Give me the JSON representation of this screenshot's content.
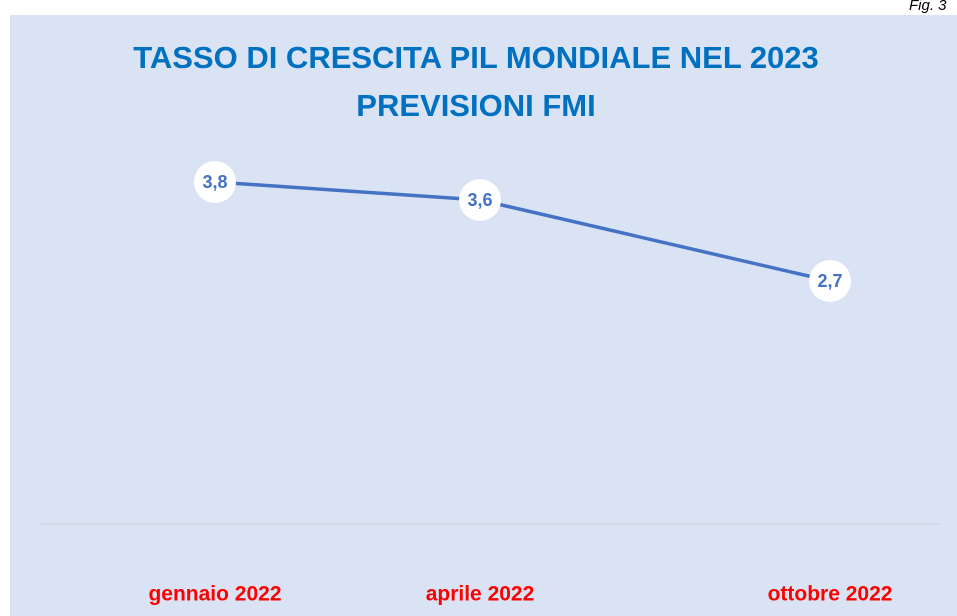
{
  "fig_label": "Fig. 3",
  "chart_data": {
    "type": "line",
    "title": [
      "TASSO DI CRESCITA PIL MONDIALE NEL 2023",
      "PREVISIONI FMI"
    ],
    "categories": [
      "gennaio 2022",
      "aprile 2022",
      "ottobre 2022"
    ],
    "series": [
      {
        "name": "PIL mondiale",
        "color": "#4472c4",
        "values": [
          3.8,
          3.6,
          2.7
        ],
        "value_labels": [
          "3,8",
          "3,6",
          "2,7"
        ]
      }
    ],
    "ylim": [
      0,
      4
    ],
    "yticks": [
      0
    ],
    "grid": true
  }
}
